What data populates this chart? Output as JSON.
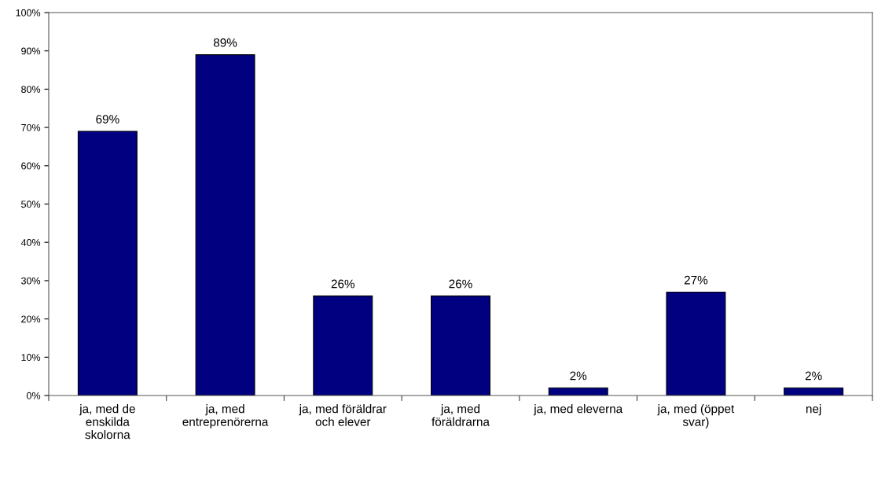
{
  "chart_data": {
    "type": "bar",
    "categories": [
      "ja, med de\nenskilda\nskolorna",
      "ja, med\nentreprenörerna",
      "ja, med föräldrar\noch elever",
      "ja, med\nföräldrarna",
      "ja, med eleverna",
      "ja, med (öppet\nsvar)",
      "nej"
    ],
    "values": [
      69,
      89,
      26,
      26,
      2,
      27,
      2
    ],
    "value_labels": [
      "69%",
      "89%",
      "26%",
      "26%",
      "2%",
      "27%",
      "2%"
    ],
    "color": "#000080",
    "ylim": [
      0,
      100
    ],
    "yticks": [
      {
        "value": 0,
        "label": "0%"
      },
      {
        "value": 10,
        "label": "10%"
      },
      {
        "value": 20,
        "label": "20%"
      },
      {
        "value": 30,
        "label": "30%"
      },
      {
        "value": 40,
        "label": "40%"
      },
      {
        "value": 50,
        "label": "50%"
      },
      {
        "value": 60,
        "label": "60%"
      },
      {
        "value": 70,
        "label": "70%"
      },
      {
        "value": 80,
        "label": "80%"
      },
      {
        "value": 90,
        "label": "90%"
      },
      {
        "value": 100,
        "label": "100%"
      }
    ],
    "grid": false,
    "legend": false
  }
}
